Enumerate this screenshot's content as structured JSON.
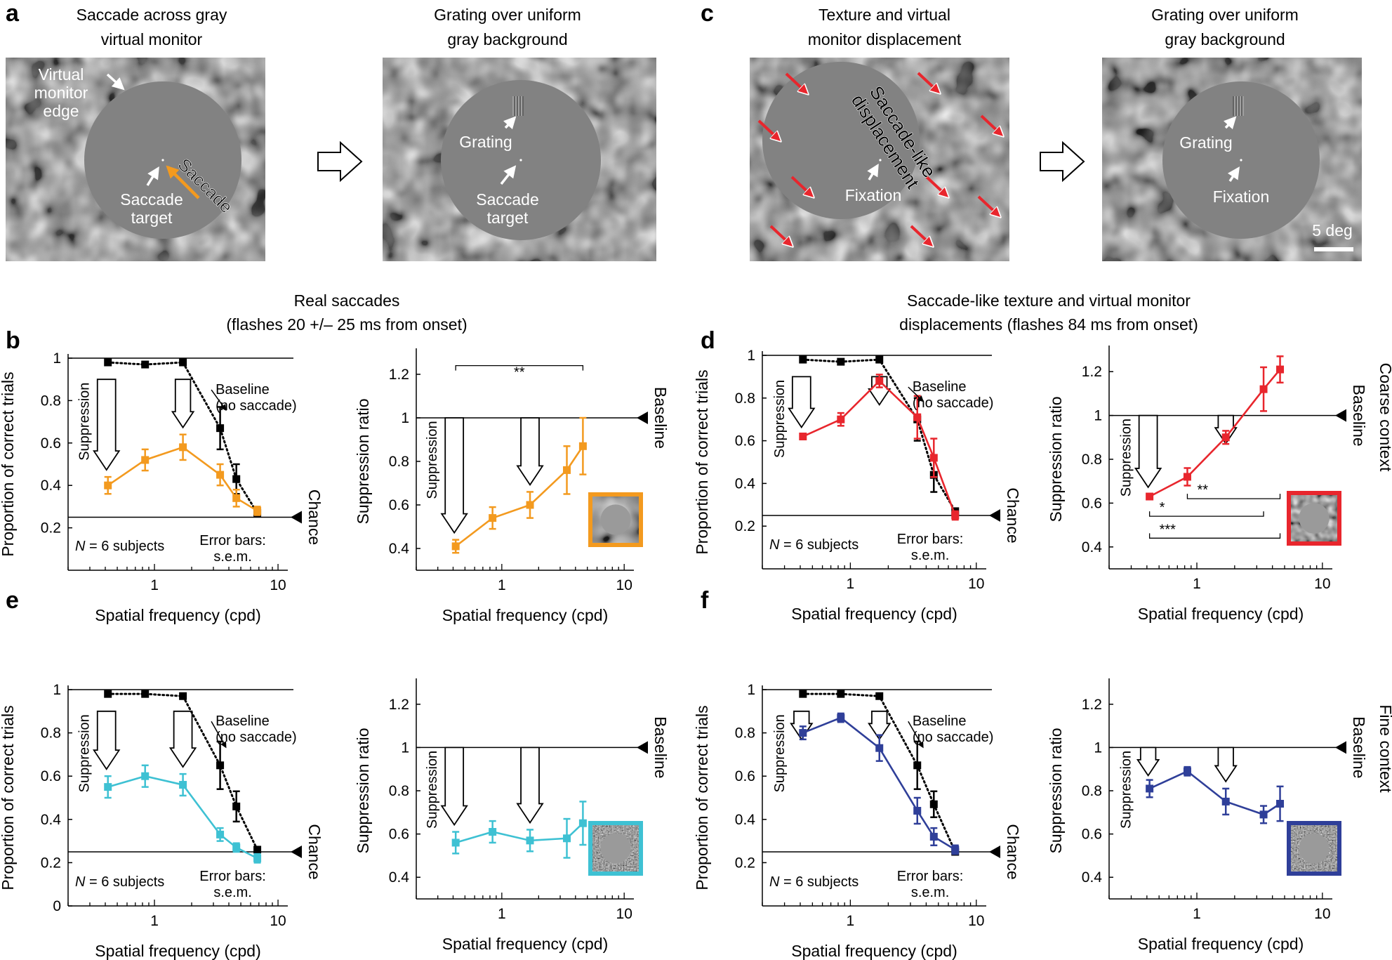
{
  "letters": {
    "a": "a",
    "b": "b",
    "c": "c",
    "d": "d",
    "e": "e",
    "f": "f"
  },
  "top": {
    "a1_title": [
      "Saccade across gray",
      "virtual monitor"
    ],
    "a2_title": [
      "Grating over uniform",
      "gray background"
    ],
    "c1_title": [
      "Texture and virtual",
      "monitor displacement"
    ],
    "c2_title": [
      "Grating over uniform",
      "gray background"
    ],
    "vme": [
      "Virtual",
      "monitor",
      "edge"
    ],
    "saccade": "Saccade",
    "saccade_target": [
      "Saccade",
      "target"
    ],
    "grating": "Grating",
    "fixation": "Fixation",
    "saccade_like": [
      "Saccade-like",
      "displacement"
    ],
    "scale": "5 deg"
  },
  "group_titles": {
    "left": [
      "Real saccades",
      "(flashes 20 +/– 25 ms from onset)"
    ],
    "right": [
      "Saccade-like texture and virtual monitor",
      "displacements (flashes 84 ms from onset)"
    ]
  },
  "common": {
    "ylabel_prop": "Proportion of correct trials",
    "ylabel_ratio": "Suppression ratio",
    "xlabel": "Spatial frequency (cpd)",
    "baseline_note": [
      "Baseline",
      "(no saccade)"
    ],
    "suppression": "Suppression",
    "baseline": "Baseline",
    "chance": "Chance",
    "n_note_italic": "N",
    "n_note_rest": " = 6 subjects",
    "err_note": [
      "Error bars:",
      "s.e.m."
    ],
    "context_d": "Coarse context",
    "context_f": "Fine context"
  },
  "colors": {
    "orange": "#f39a1f",
    "red": "#e8262d",
    "cyan": "#3ec1d3",
    "blue": "#2f3f99",
    "black": "#000000"
  },
  "chart_data": [
    {
      "panel": "b-left",
      "type": "line",
      "xscale": "log",
      "xlim": [
        0.2,
        12
      ],
      "ylim": [
        0,
        1
      ],
      "yticks": [
        "0.2",
        "0.4",
        "0.6",
        "0.8",
        "1"
      ],
      "xticks": [
        "1",
        "10"
      ],
      "xlabel": "Spatial frequency (cpd)",
      "ylabel": "Proportion of correct trials",
      "reference_lines": [
        {
          "y": 1
        },
        {
          "y": 0.25,
          "label": "Chance"
        }
      ],
      "series": [
        {
          "name": "Baseline (no saccade)",
          "color": "#000000",
          "style": "dotted",
          "x": [
            0.42,
            0.84,
            1.7,
            3.4,
            4.6,
            6.8
          ],
          "y": [
            0.98,
            0.97,
            0.98,
            0.67,
            0.43,
            0.27
          ],
          "err": [
            0,
            0,
            0,
            0.1,
            0.07,
            0.01
          ]
        },
        {
          "color": "#f39a1f",
          "style": "solid",
          "x": [
            0.42,
            0.84,
            1.7,
            3.4,
            4.6,
            6.8
          ],
          "y": [
            0.4,
            0.52,
            0.58,
            0.45,
            0.34,
            0.28
          ],
          "err": [
            0.04,
            0.05,
            0.06,
            0.05,
            0.04,
            0.02
          ]
        }
      ],
      "arrows_x": [
        0.42,
        1.7
      ]
    },
    {
      "panel": "b-right",
      "type": "line",
      "xscale": "log",
      "xlim": [
        0.2,
        12
      ],
      "ylim": [
        0.3,
        1.3
      ],
      "yticks": [
        "0.4",
        "0.6",
        "0.8",
        "1",
        "1.2"
      ],
      "xticks": [
        "1",
        "10"
      ],
      "xlabel": "Spatial frequency (cpd)",
      "ylabel": "Suppression ratio",
      "reference_lines": [
        {
          "y": 1,
          "label": "Baseline"
        }
      ],
      "series": [
        {
          "color": "#f39a1f",
          "style": "solid",
          "x": [
            0.42,
            0.84,
            1.7,
            3.4,
            4.6
          ],
          "y": [
            0.41,
            0.54,
            0.6,
            0.76,
            0.87
          ],
          "err": [
            0.03,
            0.05,
            0.06,
            0.11,
            0.13
          ]
        }
      ],
      "significance": [
        {
          "x1": 0.42,
          "x2": 4.6,
          "y": 1.24,
          "label": "**"
        }
      ],
      "arrows_x": [
        0.42,
        1.7
      ]
    },
    {
      "panel": "d-left",
      "type": "line",
      "xscale": "log",
      "xlim": [
        0.2,
        12
      ],
      "ylim": [
        0,
        1
      ],
      "yticks": [
        "0.2",
        "0.4",
        "0.6",
        "0.8",
        "1"
      ],
      "xticks": [
        "1",
        "10"
      ],
      "xlabel": "Spatial frequency (cpd)",
      "ylabel": "Proportion of correct trials",
      "reference_lines": [
        {
          "y": 1
        },
        {
          "y": 0.25,
          "label": "Chance"
        }
      ],
      "series": [
        {
          "name": "Baseline (no saccade)",
          "color": "#000000",
          "style": "dotted",
          "x": [
            0.42,
            0.84,
            1.7,
            3.4,
            4.6,
            6.8
          ],
          "y": [
            0.98,
            0.97,
            0.98,
            0.7,
            0.44,
            0.27
          ],
          "err": [
            0,
            0,
            0,
            0.1,
            0.08,
            0.01
          ]
        },
        {
          "color": "#e8262d",
          "style": "solid",
          "x": [
            0.42,
            0.84,
            1.7,
            3.4,
            4.6,
            6.8
          ],
          "y": [
            0.62,
            0.7,
            0.88,
            0.71,
            0.52,
            0.25
          ],
          "err": [
            0.01,
            0.03,
            0.03,
            0.1,
            0.09,
            0.02
          ]
        }
      ],
      "arrows_x": [
        0.42,
        1.7
      ]
    },
    {
      "panel": "d-right",
      "type": "line",
      "xscale": "log",
      "xlim": [
        0.2,
        12
      ],
      "ylim": [
        0.3,
        1.3
      ],
      "yticks": [
        "0.4",
        "0.6",
        "0.8",
        "1",
        "1.2"
      ],
      "xticks": [
        "1",
        "10"
      ],
      "xlabel": "Spatial frequency (cpd)",
      "ylabel": "Suppression ratio",
      "reference_lines": [
        {
          "y": 1,
          "label": "Baseline"
        }
      ],
      "series": [
        {
          "color": "#e8262d",
          "style": "solid",
          "x": [
            0.42,
            0.84,
            1.7,
            3.4,
            4.6
          ],
          "y": [
            0.63,
            0.72,
            0.9,
            1.12,
            1.21
          ],
          "err": [
            0.01,
            0.04,
            0.03,
            0.1,
            0.06
          ]
        }
      ],
      "significance": [
        {
          "x1": 0.84,
          "x2": 4.6,
          "y": 0.62,
          "label": "**"
        },
        {
          "x1": 0.42,
          "x2": 3.4,
          "y": 0.54,
          "label": "*"
        },
        {
          "x1": 0.42,
          "x2": 4.6,
          "y": 0.44,
          "label": "***"
        }
      ],
      "arrows_x": [
        0.42,
        1.7
      ]
    },
    {
      "panel": "e-left",
      "type": "line",
      "xscale": "log",
      "xlim": [
        0.2,
        12
      ],
      "ylim": [
        0,
        1
      ],
      "yticks": [
        "0",
        "0.2",
        "0.4",
        "0.6",
        "0.8",
        "1"
      ],
      "xticks": [
        "1",
        "10"
      ],
      "xlabel": "Spatial frequency (cpd)",
      "ylabel": "Proportion of correct trials",
      "reference_lines": [
        {
          "y": 1
        },
        {
          "y": 0.25,
          "label": "Chance"
        }
      ],
      "series": [
        {
          "name": "Baseline (no saccade)",
          "color": "#000000",
          "style": "dotted",
          "x": [
            0.42,
            0.84,
            1.7,
            3.4,
            4.6,
            6.8
          ],
          "y": [
            0.98,
            0.98,
            0.97,
            0.65,
            0.46,
            0.26
          ],
          "err": [
            0,
            0,
            0,
            0.11,
            0.07,
            0.01
          ]
        },
        {
          "color": "#3ec1d3",
          "style": "solid",
          "x": [
            0.42,
            0.84,
            1.7,
            3.4,
            4.6,
            6.8
          ],
          "y": [
            0.55,
            0.6,
            0.56,
            0.33,
            0.27,
            0.22
          ],
          "err": [
            0.05,
            0.05,
            0.05,
            0.03,
            0.02,
            0.02
          ]
        }
      ],
      "arrows_x": [
        0.42,
        1.7
      ]
    },
    {
      "panel": "e-right",
      "type": "line",
      "xscale": "log",
      "xlim": [
        0.2,
        12
      ],
      "ylim": [
        0.3,
        1.3
      ],
      "yticks": [
        "0.4",
        "0.6",
        "0.8",
        "1",
        "1.2"
      ],
      "xticks": [
        "1",
        "10"
      ],
      "xlabel": "Spatial frequency (cpd)",
      "ylabel": "Suppression ratio",
      "reference_lines": [
        {
          "y": 1,
          "label": "Baseline"
        }
      ],
      "series": [
        {
          "color": "#3ec1d3",
          "style": "solid",
          "x": [
            0.42,
            0.84,
            1.7,
            3.4,
            4.6
          ],
          "y": [
            0.56,
            0.61,
            0.57,
            0.58,
            0.65
          ],
          "err": [
            0.05,
            0.05,
            0.05,
            0.09,
            0.1
          ]
        }
      ],
      "arrows_x": [
        0.42,
        1.7
      ]
    },
    {
      "panel": "f-left",
      "type": "line",
      "xscale": "log",
      "xlim": [
        0.2,
        12
      ],
      "ylim": [
        0,
        1
      ],
      "yticks": [
        "0.2",
        "0.4",
        "0.6",
        "0.8",
        "1"
      ],
      "xticks": [
        "1",
        "10"
      ],
      "xlabel": "Spatial frequency (cpd)",
      "ylabel": "Proportion of correct trials",
      "reference_lines": [
        {
          "y": 1
        },
        {
          "y": 0.25,
          "label": "Chance"
        }
      ],
      "series": [
        {
          "name": "Baseline (no saccade)",
          "color": "#000000",
          "style": "dotted",
          "x": [
            0.42,
            0.84,
            1.7,
            3.4,
            4.6,
            6.8
          ],
          "y": [
            0.98,
            0.98,
            0.97,
            0.65,
            0.47,
            0.25
          ],
          "err": [
            0,
            0,
            0,
            0.11,
            0.06,
            0.01
          ]
        },
        {
          "color": "#2f3f99",
          "style": "solid",
          "x": [
            0.42,
            0.84,
            1.7,
            3.4,
            4.6,
            6.8
          ],
          "y": [
            0.8,
            0.87,
            0.73,
            0.44,
            0.32,
            0.26
          ],
          "err": [
            0.03,
            0.02,
            0.06,
            0.06,
            0.04,
            0.02
          ]
        }
      ],
      "arrows_x": [
        0.42,
        1.7
      ]
    },
    {
      "panel": "f-right",
      "type": "line",
      "xscale": "log",
      "xlim": [
        0.2,
        12
      ],
      "ylim": [
        0.3,
        1.3
      ],
      "yticks": [
        "0.4",
        "0.6",
        "0.8",
        "1",
        "1.2"
      ],
      "xticks": [
        "1",
        "10"
      ],
      "xlabel": "Spatial frequency (cpd)",
      "ylabel": "Suppression ratio",
      "reference_lines": [
        {
          "y": 1,
          "label": "Baseline"
        }
      ],
      "series": [
        {
          "color": "#2f3f99",
          "style": "solid",
          "x": [
            0.42,
            0.84,
            1.7,
            3.4,
            4.6
          ],
          "y": [
            0.81,
            0.89,
            0.75,
            0.69,
            0.74
          ],
          "err": [
            0.04,
            0.02,
            0.06,
            0.04,
            0.08
          ]
        }
      ],
      "arrows_x": [
        0.42,
        1.7
      ]
    }
  ]
}
